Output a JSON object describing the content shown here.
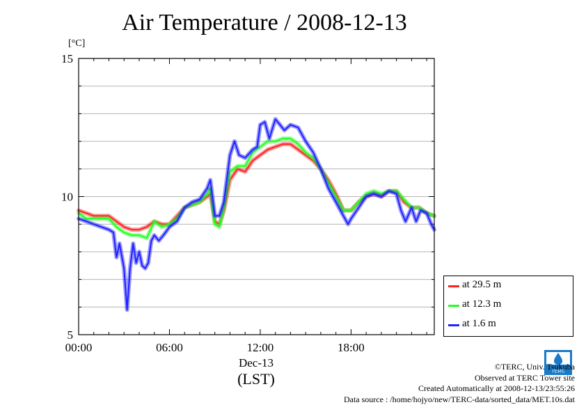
{
  "title": "Air Temperature / 2008-12-13",
  "unit_label": "[°C]",
  "x_axis": {
    "date_label": "Dec-13",
    "tz_label": "(LST)"
  },
  "legend": [
    {
      "label": "at 29.5 m",
      "color": "#ff2020"
    },
    {
      "label": "at 12.3 m",
      "color": "#20ff20"
    },
    {
      "label": "at 1.6 m",
      "color": "#2020ff"
    }
  ],
  "credits": {
    "copyright": "©TERC, Univ. Tsukuba",
    "site": "Observed at TERC Tower site",
    "created": "Created Automatically at 2008-12-13/23:55:26",
    "source": "Data source : /home/hojyo/new/TERC-data/sorted_data/MET.10s.dat"
  },
  "logo_text": "TERC",
  "chart_data": {
    "type": "line",
    "title": "Air Temperature / 2008-12-13",
    "xlabel": "Dec-13 (LST)",
    "ylabel": "[°C]",
    "xlim": [
      0,
      23.5
    ],
    "ylim": [
      5,
      15
    ],
    "x_ticks": [
      0,
      6,
      12,
      18
    ],
    "x_tick_labels": [
      "00:00",
      "06:00",
      "12:00",
      "18:00"
    ],
    "y_ticks": [
      5,
      10,
      15
    ],
    "y_tick_labels": [
      "5",
      "10",
      "15"
    ],
    "grid": true,
    "legend_position": "bottom-right, outside plot",
    "series": [
      {
        "name": "at 29.5 m",
        "color": "#ff2020",
        "x": [
          0,
          0.5,
          1,
          1.5,
          2,
          2.5,
          3,
          3.5,
          4,
          4.5,
          5,
          5.5,
          6,
          6.5,
          7,
          7.5,
          8,
          8.5,
          8.7,
          9,
          9.3,
          9.6,
          10,
          10.5,
          11,
          11.5,
          12,
          12.5,
          13,
          13.5,
          14,
          14.5,
          15,
          15.5,
          16,
          16.5,
          17,
          17.5,
          18,
          18.5,
          19,
          19.5,
          20,
          20.5,
          21,
          21.5,
          22,
          22.5,
          23,
          23.5
        ],
        "values": [
          9.5,
          9.4,
          9.3,
          9.3,
          9.3,
          9.1,
          8.9,
          8.8,
          8.8,
          8.9,
          9.1,
          9.0,
          9.0,
          9.3,
          9.6,
          9.7,
          9.8,
          10.0,
          10.1,
          9.1,
          9.0,
          9.5,
          10.6,
          11.0,
          10.9,
          11.3,
          11.5,
          11.7,
          11.8,
          11.9,
          11.9,
          11.7,
          11.5,
          11.3,
          11.0,
          10.6,
          10.1,
          9.5,
          9.5,
          9.8,
          10.0,
          10.1,
          10.0,
          10.2,
          10.2,
          9.8,
          9.6,
          9.6,
          9.4,
          9.3
        ]
      },
      {
        "name": "at 12.3 m",
        "color": "#20ff20",
        "x": [
          0,
          0.5,
          1,
          1.5,
          2,
          2.5,
          3,
          3.5,
          4,
          4.5,
          5,
          5.5,
          6,
          6.5,
          7,
          7.5,
          8,
          8.5,
          8.7,
          9,
          9.3,
          9.6,
          10,
          10.5,
          11,
          11.5,
          12,
          12.5,
          13,
          13.5,
          14,
          14.5,
          15,
          15.5,
          16,
          16.5,
          17,
          17.5,
          18,
          18.5,
          19,
          19.5,
          20,
          20.5,
          21,
          21.5,
          22,
          22.5,
          23,
          23.5
        ],
        "values": [
          9.4,
          9.2,
          9.2,
          9.2,
          9.2,
          8.9,
          8.7,
          8.6,
          8.6,
          8.5,
          9.1,
          8.9,
          9.0,
          9.2,
          9.6,
          9.7,
          9.8,
          10.1,
          10.3,
          9.0,
          8.9,
          9.6,
          10.9,
          11.1,
          11.1,
          11.6,
          11.8,
          12.0,
          12.0,
          12.1,
          12.1,
          11.9,
          11.6,
          11.4,
          11.0,
          10.5,
          10.0,
          9.5,
          9.5,
          9.8,
          10.1,
          10.2,
          10.1,
          10.2,
          10.2,
          9.9,
          9.6,
          9.6,
          9.4,
          9.3
        ]
      },
      {
        "name": "at 1.6 m",
        "color": "#2020ff",
        "x": [
          0,
          0.5,
          1,
          1.5,
          2,
          2.3,
          2.5,
          2.7,
          3,
          3.2,
          3.4,
          3.6,
          3.8,
          4,
          4.2,
          4.4,
          4.6,
          4.8,
          5,
          5.3,
          5.6,
          6,
          6.5,
          7,
          7.5,
          8,
          8.5,
          8.7,
          9,
          9.3,
          9.6,
          10,
          10.3,
          10.6,
          11,
          11.5,
          11.8,
          12,
          12.3,
          12.6,
          13,
          13.3,
          13.6,
          14,
          14.5,
          15,
          15.5,
          16,
          16.5,
          17,
          17.5,
          17.8,
          18,
          18.5,
          19,
          19.5,
          20,
          20.5,
          21,
          21.3,
          21.6,
          22,
          22.3,
          22.6,
          23,
          23.3,
          23.5
        ],
        "values": [
          9.2,
          9.1,
          9.0,
          8.9,
          8.8,
          8.7,
          7.8,
          8.3,
          7.4,
          5.9,
          7.4,
          8.3,
          7.6,
          8.0,
          7.5,
          7.4,
          7.6,
          8.4,
          8.6,
          8.4,
          8.6,
          8.9,
          9.1,
          9.6,
          9.8,
          9.9,
          10.3,
          10.6,
          9.3,
          9.3,
          9.8,
          11.5,
          12.0,
          11.5,
          11.4,
          11.7,
          11.8,
          12.6,
          12.7,
          12.1,
          12.8,
          12.6,
          12.4,
          12.6,
          12.5,
          12.0,
          11.6,
          11.0,
          10.3,
          9.8,
          9.3,
          9.0,
          9.2,
          9.6,
          10.0,
          10.1,
          10.0,
          10.2,
          10.1,
          9.5,
          9.1,
          9.6,
          9.1,
          9.5,
          9.4,
          9.0,
          8.8
        ]
      }
    ]
  }
}
